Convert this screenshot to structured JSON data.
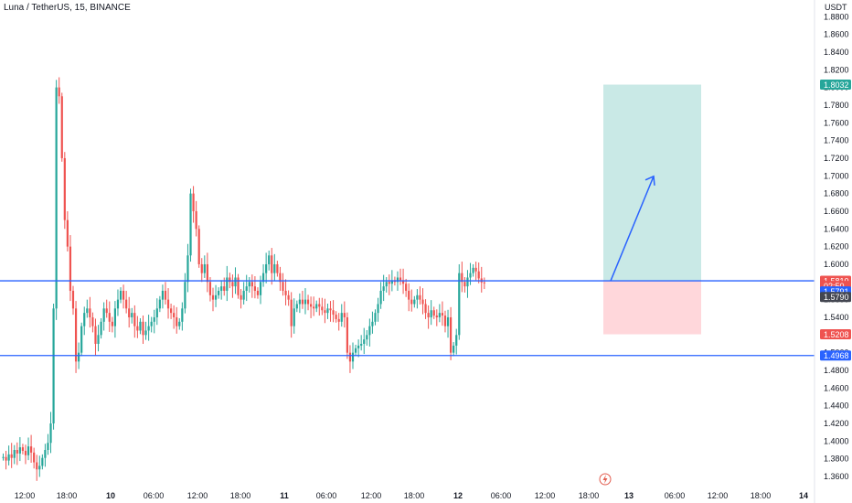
{
  "header": {
    "title": "Luna / TetherUS, 15, BINANCE",
    "unit": "USDT"
  },
  "colors": {
    "up": "#26a69a",
    "down": "#ef5350",
    "line": "#2962ff",
    "profit": "#b2dfdb",
    "loss": "#ffcdd2",
    "arrow": "#2962ff"
  },
  "chart_data": {
    "type": "candlestick",
    "title": "Luna / TetherUS, 15, BINANCE",
    "ylabel": "USDT",
    "ylim": [
      1.35,
      1.9
    ],
    "y_ticks": [
      "1.8800",
      "1.8600",
      "1.8400",
      "1.8200",
      "1.8000",
      "1.7800",
      "1.7600",
      "1.7400",
      "1.7200",
      "1.7000",
      "1.6800",
      "1.6600",
      "1.6400",
      "1.6200",
      "1.6000",
      "1.5800",
      "1.5600",
      "1.5400",
      "1.5000",
      "1.4800",
      "1.4600",
      "1.4400",
      "1.4200",
      "1.4000",
      "1.3800",
      "1.3600"
    ],
    "x_ticks": [
      {
        "label": "12:00",
        "bold": false
      },
      {
        "label": "18:00",
        "bold": false
      },
      {
        "label": "10",
        "bold": true
      },
      {
        "label": "06:00",
        "bold": false
      },
      {
        "label": "12:00",
        "bold": false
      },
      {
        "label": "18:00",
        "bold": false
      },
      {
        "label": "11",
        "bold": true
      },
      {
        "label": "06:00",
        "bold": false
      },
      {
        "label": "12:00",
        "bold": false
      },
      {
        "label": "18:00",
        "bold": false
      },
      {
        "label": "12",
        "bold": true
      },
      {
        "label": "06:00",
        "bold": false
      },
      {
        "label": "12:00",
        "bold": false
      },
      {
        "label": "18:00",
        "bold": false
      },
      {
        "label": "13",
        "bold": true
      },
      {
        "label": "06:00",
        "bold": false
      },
      {
        "label": "12:00",
        "bold": false
      },
      {
        "label": "18:00",
        "bold": false
      },
      {
        "label": "14",
        "bold": true
      }
    ],
    "horizontal_levels": [
      {
        "price": 1.5813,
        "label": "horizontal-line-upper"
      },
      {
        "price": 1.4968,
        "label": "horizontal-line-lower"
      }
    ],
    "price_tags": [
      {
        "text": "1.8032",
        "color": "#26a69a",
        "price": 1.8032
      },
      {
        "text": "1.5810",
        "color": "#ef5350",
        "price": 1.5813
      },
      {
        "text": "02:50",
        "color": "#ef5350",
        "price": 1.5755
      },
      {
        "text": "1.5791",
        "color": "#2962ff",
        "price": 1.5693
      },
      {
        "text": "1.5790",
        "color": "#434651",
        "price": 1.563
      },
      {
        "text": "1.5208",
        "color": "#ef5350",
        "price": 1.5208
      },
      {
        "text": "1.4968",
        "color": "#2962ff",
        "price": 1.4968
      }
    ],
    "position": {
      "entry": 1.5813,
      "target": 1.8032,
      "stop": 1.5208,
      "start_bar": 158,
      "end_bar": 180
    },
    "arrow": {
      "from_bar": 159,
      "from_price": 1.5813,
      "to_bar": 171,
      "to_price": 1.6995
    },
    "candles_close": [
      1.382,
      1.378,
      1.385,
      1.381,
      1.39,
      1.386,
      1.393,
      1.389,
      1.384,
      1.394,
      1.387,
      1.376,
      1.368,
      1.372,
      1.381,
      1.39,
      1.398,
      1.42,
      1.55,
      1.8,
      1.79,
      1.72,
      1.65,
      1.62,
      1.57,
      1.55,
      1.49,
      1.5,
      1.53,
      1.545,
      1.55,
      1.54,
      1.53,
      1.51,
      1.52,
      1.535,
      1.55,
      1.545,
      1.535,
      1.53,
      1.55,
      1.56,
      1.57,
      1.56,
      1.55,
      1.54,
      1.545,
      1.53,
      1.525,
      1.535,
      1.52,
      1.525,
      1.53,
      1.535,
      1.54,
      1.55,
      1.56,
      1.57,
      1.56,
      1.55,
      1.545,
      1.54,
      1.53,
      1.535,
      1.55,
      1.58,
      1.61,
      1.68,
      1.66,
      1.64,
      1.6,
      1.59,
      1.6,
      1.58,
      1.565,
      1.56,
      1.565,
      1.57,
      1.575,
      1.57,
      1.585,
      1.58,
      1.575,
      1.585,
      1.565,
      1.56,
      1.57,
      1.575,
      1.58,
      1.575,
      1.57,
      1.565,
      1.58,
      1.59,
      1.6,
      1.61,
      1.59,
      1.6,
      1.59,
      1.58,
      1.57,
      1.565,
      1.56,
      1.53,
      1.55,
      1.555,
      1.56,
      1.555,
      1.56,
      1.555,
      1.552,
      1.55,
      1.555,
      1.552,
      1.548,
      1.545,
      1.55,
      1.548,
      1.543,
      1.538,
      1.535,
      1.545,
      1.54,
      1.5,
      1.49,
      1.5,
      1.505,
      1.508,
      1.51,
      1.515,
      1.52,
      1.53,
      1.535,
      1.545,
      1.555,
      1.57,
      1.575,
      1.58,
      1.578,
      1.582,
      1.58,
      1.585,
      1.582,
      1.578,
      1.57,
      1.56,
      1.555,
      1.56,
      1.565,
      1.56,
      1.555,
      1.545,
      1.54,
      1.548,
      1.542,
      1.54,
      1.545,
      1.542,
      1.53,
      1.54,
      1.5,
      1.508,
      1.52,
      1.59,
      1.58,
      1.575,
      1.585,
      1.59,
      1.596,
      1.592,
      1.584,
      1.5795,
      1.579
    ]
  }
}
